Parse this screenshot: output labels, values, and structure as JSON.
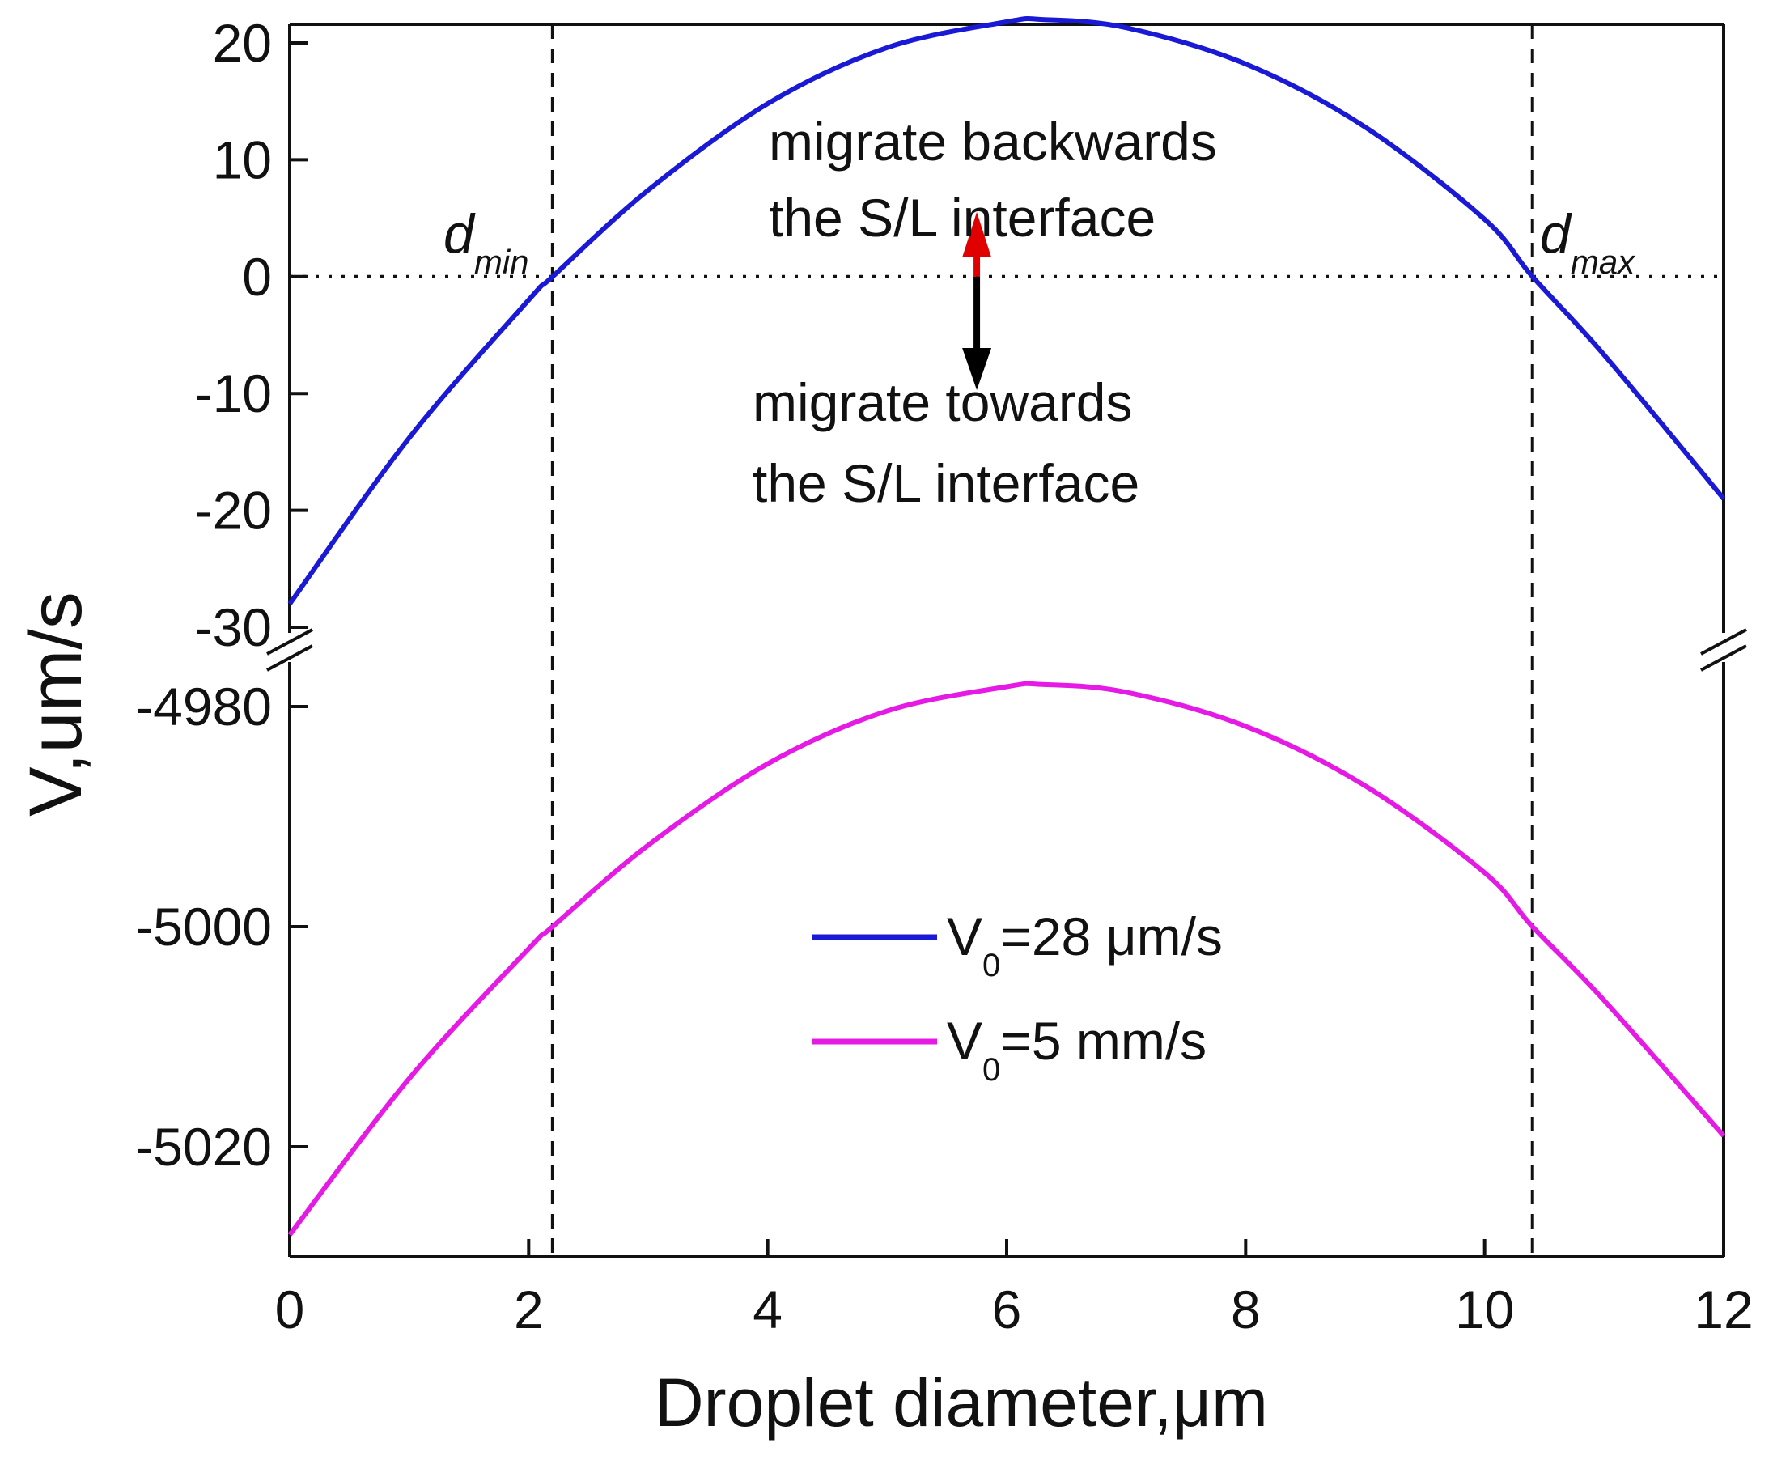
{
  "chart_data": {
    "type": "line",
    "xlabel": "Droplet diameter,μm",
    "ylabel": "V,um/s",
    "xlim": [
      0,
      12
    ],
    "x_ticks": [
      "0",
      "2",
      "4",
      "6",
      "8",
      "10",
      "12"
    ],
    "y_break": true,
    "y_upper_segment": {
      "range": [
        -30,
        22
      ],
      "ticks": [
        "20",
        "10",
        "0",
        "-10",
        "-20",
        "-30"
      ]
    },
    "y_lower_segment": {
      "range": [
        -5028,
        -4976
      ],
      "ticks": [
        "-4980",
        "-5000",
        "-5020"
      ]
    },
    "grid": false,
    "legend_position": "center-right",
    "series": [
      {
        "name": "V0=28 μm/s",
        "legend_main": "V",
        "legend_sub": "0",
        "legend_rest": "=28 μm/s",
        "color": "#1a1ad6",
        "segment": "upper",
        "x": [
          0,
          1,
          2,
          2.2,
          3,
          4,
          5,
          6,
          6.3,
          7,
          8,
          9,
          10,
          10.4,
          11,
          12
        ],
        "y": [
          -28,
          -13.8,
          -2.0,
          0,
          7.4,
          14.8,
          19.6,
          21.8,
          22.0,
          21.3,
          18.2,
          12.8,
          4.9,
          0,
          -6.7,
          -19.0
        ]
      },
      {
        "name": "V0=5 mm/s",
        "legend_main": "V",
        "legend_sub": "0",
        "legend_rest": "=5 mm/s",
        "color": "#e51ae5",
        "segment": "lower",
        "x": [
          0,
          1,
          2,
          2.2,
          3,
          4,
          5,
          6,
          6.3,
          7,
          8,
          9,
          10,
          10.4,
          11,
          12
        ],
        "y": [
          -5028,
          -5013.8,
          -5002.0,
          -5000,
          -4992.6,
          -4985.2,
          -4980.4,
          -4978.2,
          -4978.0,
          -4978.7,
          -4981.8,
          -4987.2,
          -4995.1,
          -5000,
          -5006.7,
          -5019.0
        ]
      }
    ],
    "reference_lines": [
      {
        "orientation": "vertical",
        "x": 2.2,
        "style": "dashed",
        "label_main": "d",
        "label_sub": "min"
      },
      {
        "orientation": "vertical",
        "x": 10.4,
        "style": "dashed",
        "label_main": "d",
        "label_sub": "max"
      },
      {
        "orientation": "horizontal",
        "y": 0,
        "segment": "upper",
        "style": "dotted"
      }
    ],
    "annotations": [
      {
        "text_lines": [
          "migrate backwards",
          "the S/L interface"
        ],
        "arrow": "up",
        "arrow_color": "#e00000"
      },
      {
        "text_lines": [
          "migrate towards",
          "the S/L interface"
        ],
        "arrow": "down",
        "arrow_color": "#000000"
      }
    ],
    "arrow_x": 5.75
  }
}
